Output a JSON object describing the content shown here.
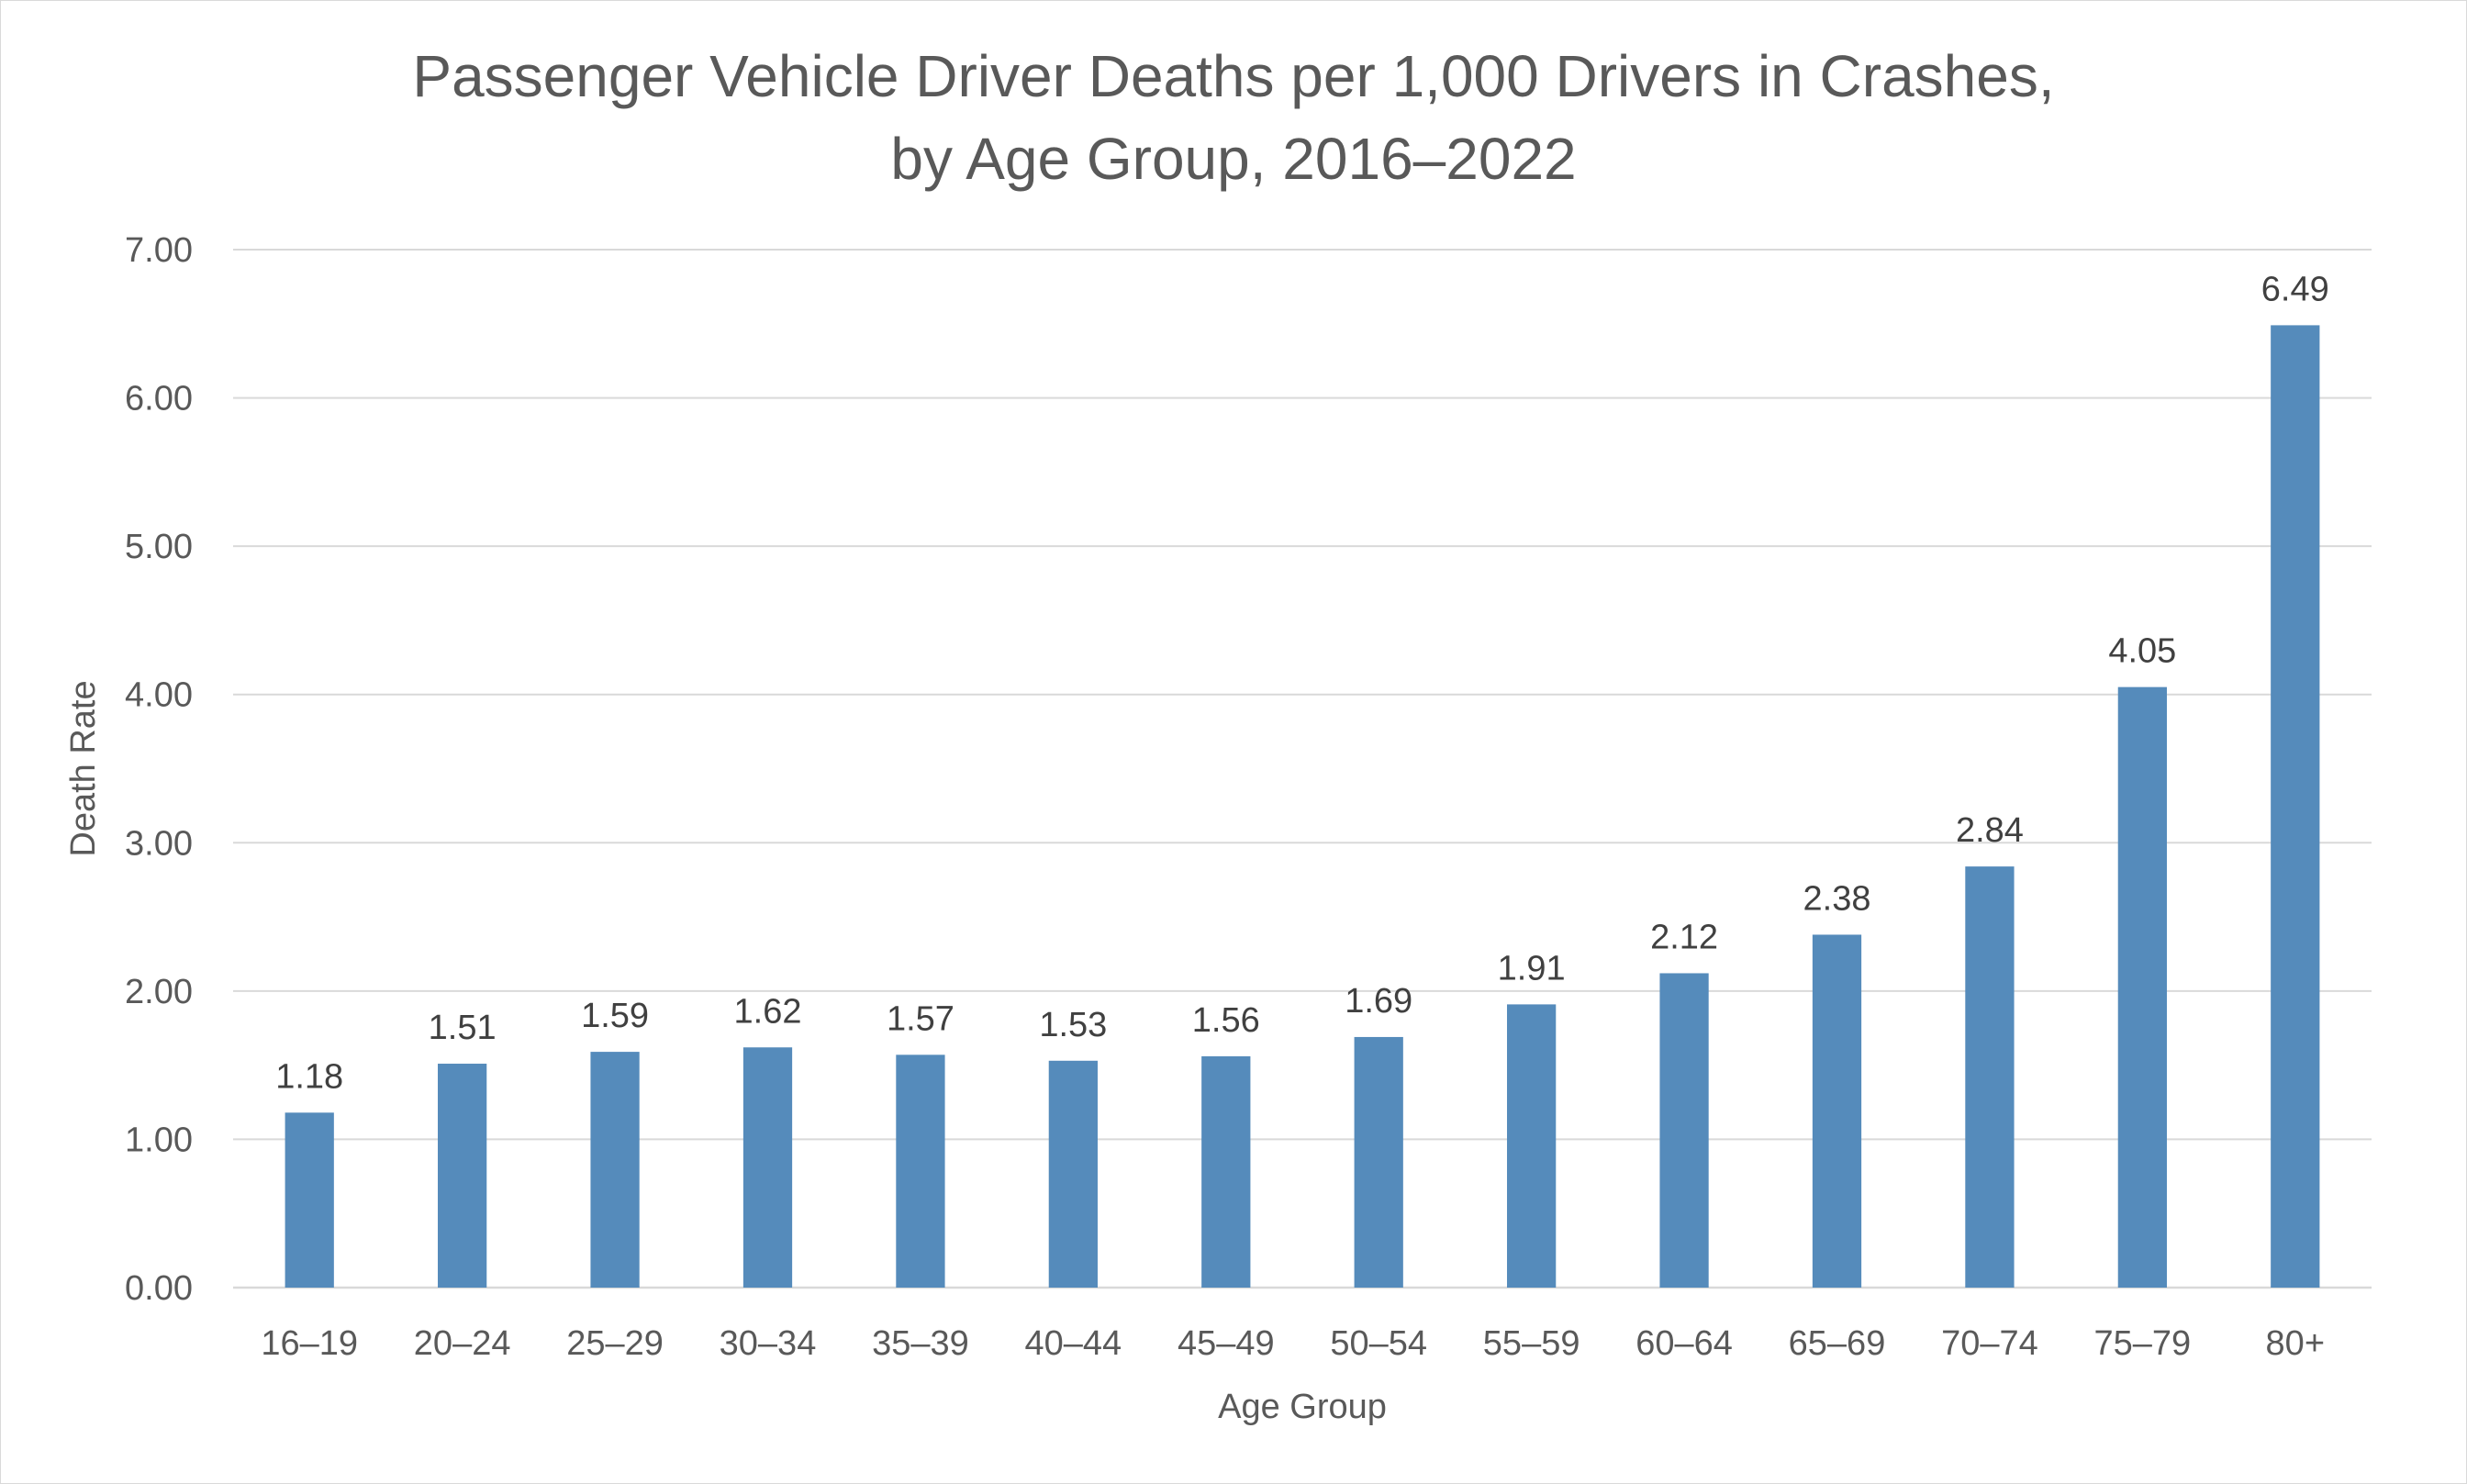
{
  "chart_data": {
    "type": "bar",
    "title_lines": [
      "Passenger Vehicle Driver Deaths per 1,000 Drivers in Crashes,",
      "by Age Group, 2016–2022"
    ],
    "xlabel": "Age Group",
    "ylabel": "Death Rate",
    "categories": [
      "16–19",
      "20–24",
      "25–29",
      "30–34",
      "35–39",
      "40–44",
      "45–49",
      "50–54",
      "55–59",
      "60–64",
      "65–69",
      "70–74",
      "75–79",
      "80+"
    ],
    "values": [
      1.18,
      1.51,
      1.59,
      1.62,
      1.57,
      1.53,
      1.56,
      1.69,
      1.91,
      2.12,
      2.38,
      2.84,
      4.05,
      6.49
    ],
    "value_labels": [
      "1.18",
      "1.51",
      "1.59",
      "1.62",
      "1.57",
      "1.53",
      "1.56",
      "1.69",
      "1.91",
      "2.12",
      "2.38",
      "2.84",
      "4.05",
      "6.49"
    ],
    "yticks": [
      0,
      1,
      2,
      3,
      4,
      5,
      6,
      7
    ],
    "ytick_labels": [
      "0.00",
      "1.00",
      "2.00",
      "3.00",
      "4.00",
      "5.00",
      "6.00",
      "7.00"
    ],
    "ylim": [
      0,
      7
    ],
    "grid": true,
    "legend": "none",
    "colors": {
      "bar": "#558bbb",
      "grid": "#d9d9d9",
      "axis": "#d9d9d9",
      "text": "#595959",
      "data_label": "#404040"
    }
  }
}
